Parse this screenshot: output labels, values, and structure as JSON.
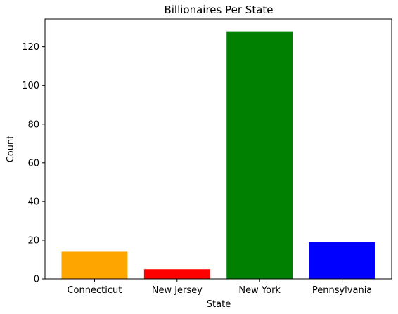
{
  "chart_data": {
    "type": "bar",
    "title": "Billionaires Per State",
    "xlabel": "State",
    "ylabel": "Count",
    "categories": [
      "Connecticut",
      "New Jersey",
      "New York",
      "Pennsylvania"
    ],
    "values": [
      14,
      5,
      128,
      19
    ],
    "colors": [
      "#ffa500",
      "#ff0000",
      "#008000",
      "#0000ff"
    ],
    "ylim": [
      0,
      134.4
    ],
    "yticks": [
      0,
      20,
      40,
      60,
      80,
      100,
      120
    ],
    "grid": false,
    "legend": "none"
  }
}
